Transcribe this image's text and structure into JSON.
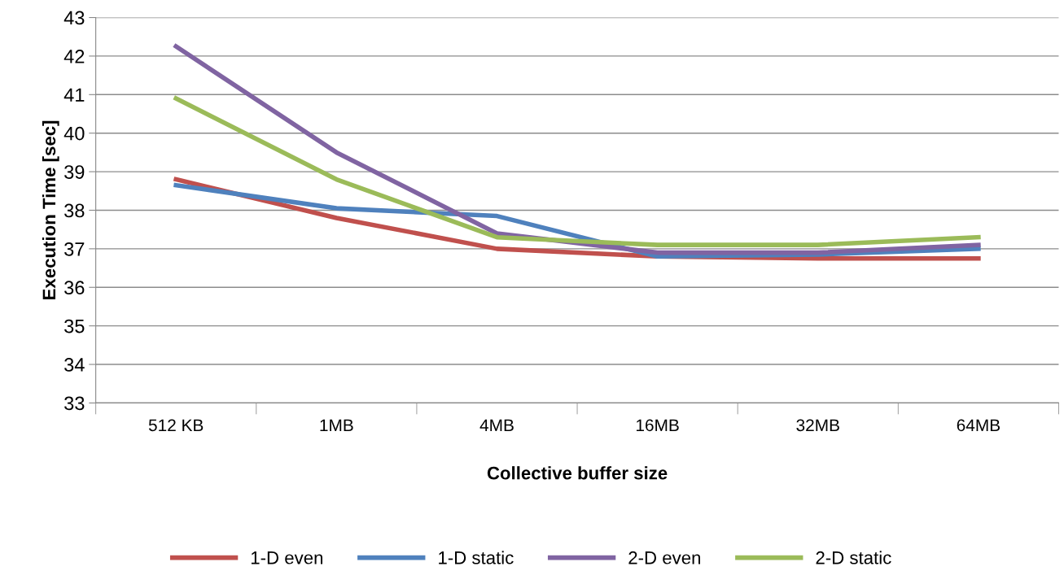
{
  "chart_data": {
    "type": "line",
    "xlabel": "Collective buffer size",
    "ylabel": "Execution Time [sec]",
    "categories": [
      "512 KB",
      "1MB",
      "4MB",
      "16MB",
      "32MB",
      "64MB"
    ],
    "series": [
      {
        "name": "1-D even",
        "color": "#c0504d",
        "values": [
          38.8,
          37.8,
          37.0,
          36.8,
          36.75,
          36.75
        ]
      },
      {
        "name": "1-D static",
        "color": "#4f81bd",
        "values": [
          38.65,
          38.05,
          37.85,
          36.8,
          36.85,
          37.0
        ]
      },
      {
        "name": "2-D even",
        "color": "#8064a2",
        "values": [
          42.25,
          39.5,
          37.4,
          36.9,
          36.9,
          37.1
        ]
      },
      {
        "name": "2-D static",
        "color": "#9bbb59",
        "values": [
          40.9,
          38.8,
          37.3,
          37.1,
          37.1,
          37.3
        ]
      }
    ],
    "ylim": [
      33,
      43
    ],
    "yticks": [
      33,
      34,
      35,
      36,
      37,
      38,
      39,
      40,
      41,
      42,
      43
    ],
    "grid": "y",
    "legend": "bottom",
    "marker": "none",
    "line_style": "solid"
  }
}
